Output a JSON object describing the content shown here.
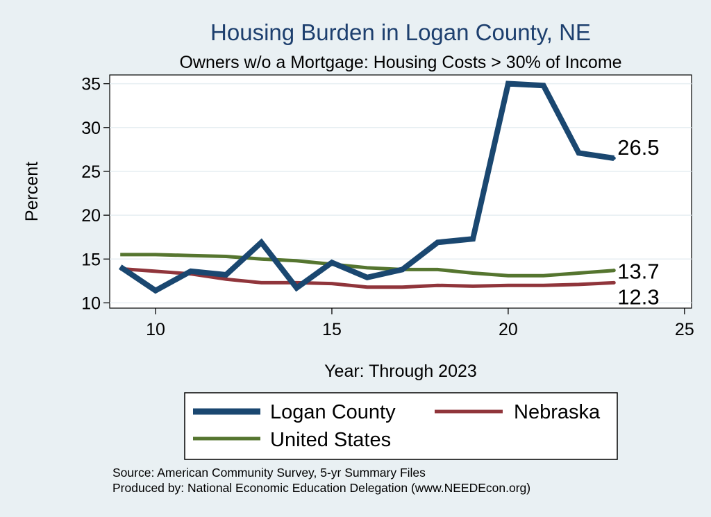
{
  "chart_data": {
    "type": "line",
    "title": "Housing Burden in Logan County, NE",
    "subtitle": "Owners w/o a Mortgage: Housing Costs > 30% of Income",
    "xlabel": "Year: Through 2023",
    "ylabel": "Percent",
    "xlim": [
      8.7,
      25.2
    ],
    "ylim": [
      9.4,
      36.0
    ],
    "xticks": [
      10,
      15,
      20,
      25
    ],
    "yticks": [
      10,
      15,
      20,
      25,
      30,
      35
    ],
    "grid": true,
    "x": [
      9,
      10,
      11,
      12,
      13,
      14,
      15,
      16,
      17,
      18,
      19,
      20,
      21,
      22,
      23
    ],
    "series": [
      {
        "name": "Logan County",
        "color": "#1a4770",
        "values": [
          14.1,
          11.4,
          13.6,
          13.2,
          16.9,
          11.7,
          14.6,
          12.9,
          13.8,
          16.9,
          17.3,
          35.0,
          34.8,
          27.1,
          26.5
        ],
        "end_label": "26.5"
      },
      {
        "name": "Nebraska",
        "color": "#90353b",
        "values": [
          13.9,
          13.6,
          13.3,
          12.7,
          12.3,
          12.3,
          12.2,
          11.8,
          11.8,
          12.0,
          11.9,
          12.0,
          12.0,
          12.1,
          12.3
        ],
        "end_label": "12.3"
      },
      {
        "name": "United States",
        "color": "#55752f",
        "values": [
          15.5,
          15.5,
          15.4,
          15.3,
          15.0,
          14.8,
          14.4,
          14.0,
          13.8,
          13.8,
          13.4,
          13.1,
          13.1,
          13.4,
          13.7
        ],
        "end_label": "13.7"
      }
    ],
    "legend": {
      "placement": "bottom",
      "entries": [
        "Logan County",
        "Nebraska",
        "United States"
      ]
    }
  },
  "source": {
    "line1": "Source: American Community Survey, 5-yr Summary Files",
    "line2": "Produced by: National Economic Education Delegation (www.NEEDEcon.org)"
  },
  "colors": {
    "background": "#e9f0f3",
    "plot_background": "#ffffff",
    "grid": "#e6eef2",
    "title": "#1d3f6e"
  }
}
